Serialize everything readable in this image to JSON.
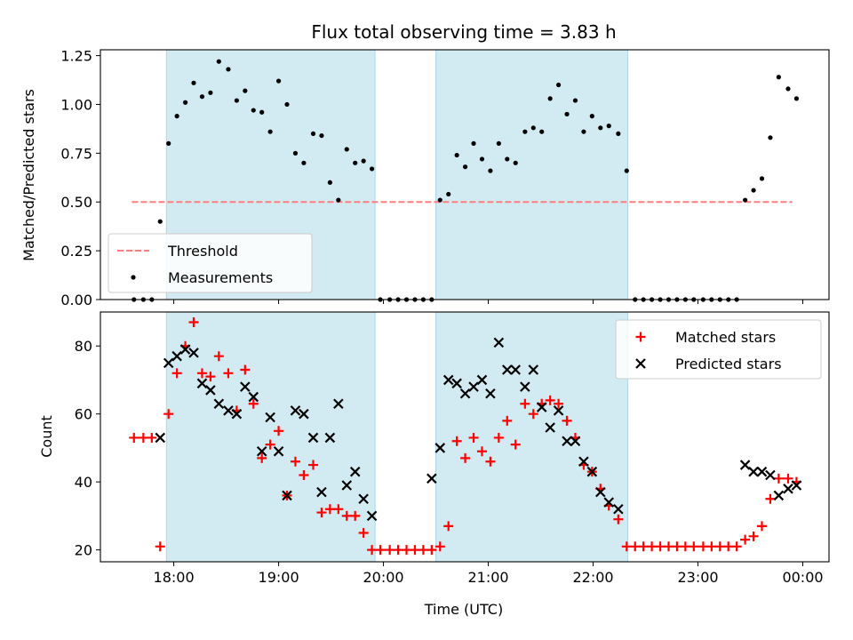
{
  "chart_data": {
    "type": "scatter",
    "title": "Flux total observing time = 3.83 h",
    "xlabel": "Time (UTC)",
    "x_unit": "hours UTC",
    "x_ticks": [
      {
        "value": 18,
        "label": "18:00"
      },
      {
        "value": 19,
        "label": "19:00"
      },
      {
        "value": 20,
        "label": "20:00"
      },
      {
        "value": 21,
        "label": "21:00"
      },
      {
        "value": 22,
        "label": "22:00"
      },
      {
        "value": 23,
        "label": "23:00"
      },
      {
        "value": 24,
        "label": "00:00"
      }
    ],
    "xlim": [
      17.3,
      24.25
    ],
    "shaded_intervals": [
      [
        17.93,
        19.92
      ],
      [
        20.5,
        22.33
      ]
    ],
    "shade_color": "#add8e6",
    "panels": [
      {
        "ylabel": "Matched/Predicted stars",
        "ylim": [
          0,
          1.28
        ],
        "y_ticks": [
          "0.00",
          "0.25",
          "0.50",
          "0.75",
          "1.00",
          "1.25"
        ],
        "legend_position": "lower-left",
        "series": [
          {
            "name": "Threshold",
            "kind": "dashed-line",
            "color": "#ff7f7f",
            "x": [
              17.6,
              23.9
            ],
            "y": [
              0.5,
              0.5
            ]
          },
          {
            "name": "Measurements",
            "kind": "dot",
            "color": "#000000",
            "points": [
              [
                17.62,
                0.0
              ],
              [
                17.71,
                0.0
              ],
              [
                17.79,
                0.0
              ],
              [
                17.87,
                0.4
              ],
              [
                17.95,
                0.8
              ],
              [
                18.03,
                0.94
              ],
              [
                18.11,
                1.01
              ],
              [
                18.19,
                1.11
              ],
              [
                18.27,
                1.04
              ],
              [
                18.35,
                1.06
              ],
              [
                18.43,
                1.22
              ],
              [
                18.52,
                1.18
              ],
              [
                18.6,
                1.02
              ],
              [
                18.68,
                1.07
              ],
              [
                18.76,
                0.97
              ],
              [
                18.84,
                0.96
              ],
              [
                18.92,
                0.86
              ],
              [
                19.0,
                1.12
              ],
              [
                19.08,
                1.0
              ],
              [
                19.16,
                0.75
              ],
              [
                19.24,
                0.7
              ],
              [
                19.33,
                0.85
              ],
              [
                19.41,
                0.84
              ],
              [
                19.49,
                0.6
              ],
              [
                19.57,
                0.51
              ],
              [
                19.65,
                0.77
              ],
              [
                19.73,
                0.7
              ],
              [
                19.81,
                0.71
              ],
              [
                19.89,
                0.67
              ],
              [
                19.97,
                0.0
              ],
              [
                20.06,
                0.0
              ],
              [
                20.14,
                0.0
              ],
              [
                20.22,
                0.0
              ],
              [
                20.3,
                0.0
              ],
              [
                20.38,
                0.0
              ],
              [
                20.46,
                0.0
              ],
              [
                20.54,
                0.51
              ],
              [
                20.62,
                0.54
              ],
              [
                20.7,
                0.74
              ],
              [
                20.78,
                0.68
              ],
              [
                20.86,
                0.8
              ],
              [
                20.94,
                0.72
              ],
              [
                21.02,
                0.66
              ],
              [
                21.1,
                0.8
              ],
              [
                21.18,
                0.72
              ],
              [
                21.26,
                0.7
              ],
              [
                21.35,
                0.86
              ],
              [
                21.43,
                0.88
              ],
              [
                21.51,
                0.86
              ],
              [
                21.59,
                1.03
              ],
              [
                21.67,
                1.1
              ],
              [
                21.75,
                0.95
              ],
              [
                21.83,
                1.02
              ],
              [
                21.91,
                0.86
              ],
              [
                21.99,
                0.94
              ],
              [
                22.07,
                0.88
              ],
              [
                22.15,
                0.89
              ],
              [
                22.24,
                0.85
              ],
              [
                22.32,
                0.66
              ],
              [
                22.4,
                0.0
              ],
              [
                22.48,
                0.0
              ],
              [
                22.56,
                0.0
              ],
              [
                22.64,
                0.0
              ],
              [
                22.72,
                0.0
              ],
              [
                22.8,
                0.0
              ],
              [
                22.88,
                0.0
              ],
              [
                22.96,
                0.0
              ],
              [
                23.05,
                0.0
              ],
              [
                23.13,
                0.0
              ],
              [
                23.21,
                0.0
              ],
              [
                23.29,
                0.0
              ],
              [
                23.37,
                0.0
              ],
              [
                23.45,
                0.51
              ],
              [
                23.53,
                0.56
              ],
              [
                23.61,
                0.62
              ],
              [
                23.69,
                0.83
              ],
              [
                23.77,
                1.14
              ],
              [
                23.86,
                1.08
              ],
              [
                23.94,
                1.03
              ]
            ]
          }
        ]
      },
      {
        "ylabel": "Count",
        "ylim": [
          16.5,
          90
        ],
        "y_ticks": [
          "20",
          "40",
          "60",
          "80"
        ],
        "legend_position": "top-right",
        "series": [
          {
            "name": "Matched stars",
            "kind": "plus",
            "color": "#ff0000",
            "points": [
              [
                17.62,
                53
              ],
              [
                17.71,
                53
              ],
              [
                17.79,
                53
              ],
              [
                17.87,
                21
              ],
              [
                17.95,
                60
              ],
              [
                18.03,
                72
              ],
              [
                18.11,
                80
              ],
              [
                18.19,
                87
              ],
              [
                18.27,
                72
              ],
              [
                18.35,
                71
              ],
              [
                18.43,
                77
              ],
              [
                18.52,
                72
              ],
              [
                18.6,
                61
              ],
              [
                18.68,
                73
              ],
              [
                18.76,
                63
              ],
              [
                18.84,
                47
              ],
              [
                18.92,
                51
              ],
              [
                19.0,
                55
              ],
              [
                19.08,
                36
              ],
              [
                19.16,
                46
              ],
              [
                19.24,
                42
              ],
              [
                19.33,
                45
              ],
              [
                19.41,
                31
              ],
              [
                19.49,
                32
              ],
              [
                19.57,
                32
              ],
              [
                19.65,
                30
              ],
              [
                19.73,
                30
              ],
              [
                19.81,
                25
              ],
              [
                19.89,
                20
              ],
              [
                19.97,
                20
              ],
              [
                20.06,
                20
              ],
              [
                20.14,
                20
              ],
              [
                20.22,
                20
              ],
              [
                20.3,
                20
              ],
              [
                20.38,
                20
              ],
              [
                20.46,
                20
              ],
              [
                20.54,
                21
              ],
              [
                20.62,
                27
              ],
              [
                20.7,
                52
              ],
              [
                20.78,
                47
              ],
              [
                20.86,
                53
              ],
              [
                20.94,
                49
              ],
              [
                21.02,
                46
              ],
              [
                21.1,
                53
              ],
              [
                21.18,
                58
              ],
              [
                21.26,
                51
              ],
              [
                21.35,
                63
              ],
              [
                21.43,
                60
              ],
              [
                21.51,
                63
              ],
              [
                21.59,
                64
              ],
              [
                21.67,
                63
              ],
              [
                21.75,
                58
              ],
              [
                21.83,
                53
              ],
              [
                21.91,
                45
              ],
              [
                21.99,
                43
              ],
              [
                22.07,
                38
              ],
              [
                22.15,
                33
              ],
              [
                22.24,
                29
              ],
              [
                22.32,
                21
              ],
              [
                22.4,
                21
              ],
              [
                22.48,
                21
              ],
              [
                22.56,
                21
              ],
              [
                22.64,
                21
              ],
              [
                22.72,
                21
              ],
              [
                22.8,
                21
              ],
              [
                22.88,
                21
              ],
              [
                22.96,
                21
              ],
              [
                23.05,
                21
              ],
              [
                23.13,
                21
              ],
              [
                23.21,
                21
              ],
              [
                23.29,
                21
              ],
              [
                23.37,
                21
              ],
              [
                23.45,
                23
              ],
              [
                23.53,
                24
              ],
              [
                23.61,
                27
              ],
              [
                23.69,
                35
              ],
              [
                23.77,
                41
              ],
              [
                23.86,
                41
              ],
              [
                23.94,
                40
              ]
            ]
          },
          {
            "name": "Predicted stars",
            "kind": "cross",
            "color": "#000000",
            "points": [
              [
                17.87,
                53
              ],
              [
                17.95,
                75
              ],
              [
                18.03,
                77
              ],
              [
                18.11,
                79
              ],
              [
                18.19,
                78
              ],
              [
                18.27,
                69
              ],
              [
                18.35,
                67
              ],
              [
                18.43,
                63
              ],
              [
                18.52,
                61
              ],
              [
                18.6,
                60
              ],
              [
                18.68,
                68
              ],
              [
                18.76,
                65
              ],
              [
                18.84,
                49
              ],
              [
                18.92,
                59
              ],
              [
                19.0,
                49
              ],
              [
                19.08,
                36
              ],
              [
                19.16,
                61
              ],
              [
                19.24,
                60
              ],
              [
                19.33,
                53
              ],
              [
                19.41,
                37
              ],
              [
                19.49,
                53
              ],
              [
                19.57,
                63
              ],
              [
                19.65,
                39
              ],
              [
                19.73,
                43
              ],
              [
                19.81,
                35
              ],
              [
                19.89,
                30
              ],
              [
                20.46,
                41
              ],
              [
                20.54,
                50
              ],
              [
                20.62,
                70
              ],
              [
                20.7,
                69
              ],
              [
                20.78,
                66
              ],
              [
                20.86,
                68
              ],
              [
                20.94,
                70
              ],
              [
                21.02,
                66
              ],
              [
                21.1,
                81
              ],
              [
                21.18,
                73
              ],
              [
                21.26,
                73
              ],
              [
                21.35,
                68
              ],
              [
                21.43,
                73
              ],
              [
                21.51,
                62
              ],
              [
                21.59,
                56
              ],
              [
                21.67,
                61
              ],
              [
                21.75,
                52
              ],
              [
                21.83,
                52
              ],
              [
                21.91,
                46
              ],
              [
                21.99,
                43
              ],
              [
                22.07,
                37
              ],
              [
                22.15,
                34
              ],
              [
                22.24,
                32
              ],
              [
                23.45,
                45
              ],
              [
                23.53,
                43
              ],
              [
                23.61,
                43
              ],
              [
                23.69,
                42
              ],
              [
                23.77,
                36
              ],
              [
                23.86,
                38
              ],
              [
                23.94,
                39
              ]
            ]
          }
        ]
      }
    ]
  }
}
